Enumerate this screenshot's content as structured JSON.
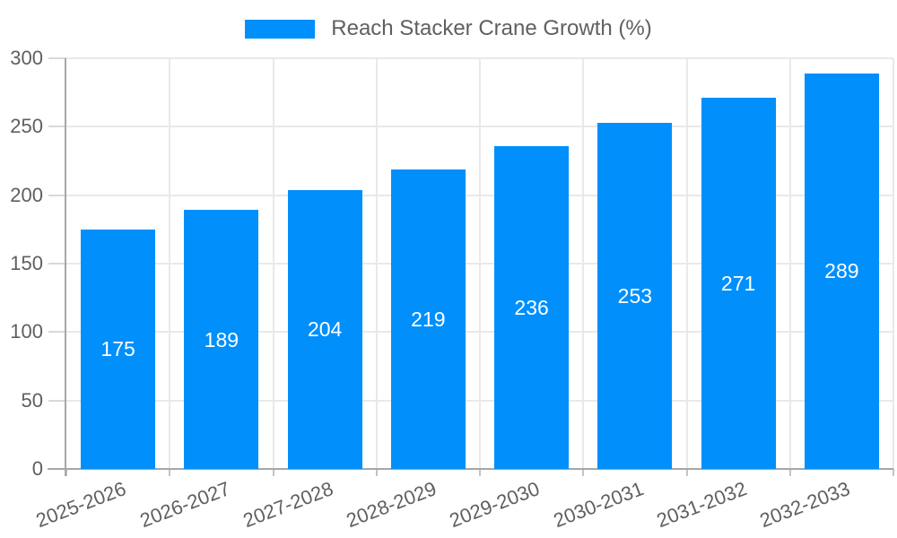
{
  "chart_data": {
    "type": "bar",
    "legend_label": "Reach Stacker Crane Growth (%)",
    "legend_position": "top",
    "categories": [
      "2025-2026",
      "2026-2027",
      "2027-2028",
      "2028-2029",
      "2029-2030",
      "2030-2031",
      "2031-2032",
      "2032-2033"
    ],
    "values": [
      175,
      189,
      204,
      219,
      236,
      253,
      271,
      289
    ],
    "xlabel": "",
    "ylabel": "",
    "ylim": [
      0,
      300
    ],
    "yticks": [
      0,
      50,
      100,
      150,
      200,
      250,
      300
    ],
    "grid": true,
    "value_label_position": "inside-center",
    "x_label_rotation_deg": -21
  },
  "colors": {
    "bar": "#008FFB",
    "value_label": "#ffffff",
    "axis_text": "#5f5f5f",
    "legend_text": "#606060",
    "grid_line": "#e9e9e9",
    "axis_line": "#a6a6a6",
    "tick_y": "#d9d9d9",
    "tick_x": "#c4c4c4",
    "background": "#ffffff"
  }
}
